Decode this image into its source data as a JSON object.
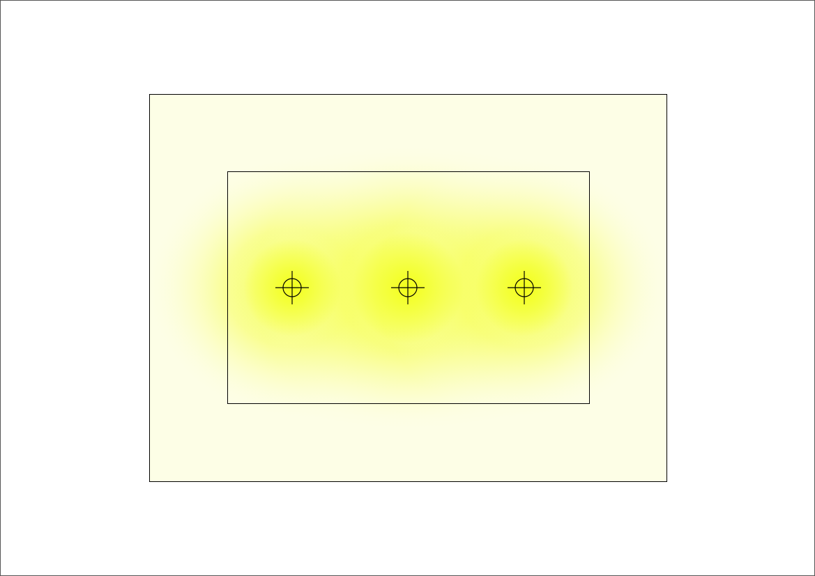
{
  "diagram": {
    "kind": "light-intensity-field",
    "light_source_count": 3,
    "colors": {
      "page_background": "#ffffff",
      "page_border": "#555555",
      "outer_field": "#fdfee6",
      "glow_core": "#f2ff1a",
      "glow_mid": "#f7ff66",
      "glow_edge": "#fdfee6",
      "outline": "#000000"
    },
    "rectangles": [
      {
        "name": "outer-area"
      },
      {
        "name": "inner-area"
      }
    ],
    "light_sources": [
      {
        "name": "light-source-left",
        "icon": "crosshair-circle-icon"
      },
      {
        "name": "light-source-center",
        "icon": "crosshair-circle-icon"
      },
      {
        "name": "light-source-right",
        "icon": "crosshair-circle-icon"
      }
    ]
  }
}
